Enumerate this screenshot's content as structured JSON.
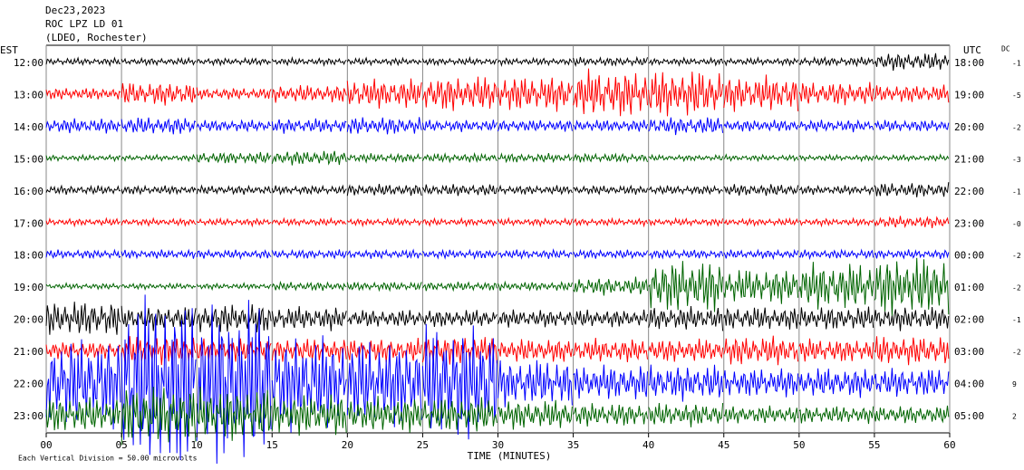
{
  "chart_data": {
    "type": "helicorder",
    "title": "Dec23,2023",
    "subtitle": "ROC LPZ LD 01",
    "station_note": "(LDEO, Rochester)",
    "left_axis_label": "EST",
    "right_axis_label": "UTC",
    "dc_label": "DC",
    "xlabel": "TIME (MINUTES)",
    "footnote": "Each Vertical Division =   50.00 microvolts",
    "xlim": [
      0,
      60
    ],
    "xticks": [
      {
        "value": 0,
        "label": "00"
      },
      {
        "value": 5,
        "label": "05"
      },
      10,
      15,
      20,
      25,
      30,
      35,
      40,
      45,
      50,
      55,
      60
    ],
    "rows": [
      {
        "est": "12:00",
        "utc": "18:00",
        "dc": "-1",
        "color": "#000000",
        "amplitude": [
          0.12,
          0.12,
          0.12,
          0.12,
          0.12,
          0.12,
          0.12,
          0.15,
          0.12,
          0.12,
          0.15,
          0.3
        ]
      },
      {
        "est": "13:00",
        "utc": "19:00",
        "dc": "-5",
        "color": "#ff0000",
        "amplitude": [
          0.2,
          0.4,
          0.2,
          0.3,
          0.5,
          0.6,
          0.6,
          0.8,
          0.8,
          0.6,
          0.4,
          0.3
        ]
      },
      {
        "est": "14:00",
        "utc": "20:00",
        "dc": "-2",
        "color": "#0000ff",
        "amplitude": [
          0.25,
          0.3,
          0.2,
          0.25,
          0.3,
          0.2,
          0.2,
          0.2,
          0.3,
          0.2,
          0.2,
          0.2
        ]
      },
      {
        "est": "15:00",
        "utc": "21:00",
        "dc": "-3",
        "color": "#006400",
        "amplitude": [
          0.1,
          0.1,
          0.2,
          0.25,
          0.15,
          0.15,
          0.15,
          0.15,
          0.1,
          0.1,
          0.1,
          0.1
        ]
      },
      {
        "est": "16:00",
        "utc": "22:00",
        "dc": "-1",
        "color": "#000000",
        "amplitude": [
          0.15,
          0.15,
          0.15,
          0.15,
          0.2,
          0.2,
          0.15,
          0.15,
          0.15,
          0.2,
          0.15,
          0.25
        ]
      },
      {
        "est": "17:00",
        "utc": "23:00",
        "dc": "-0",
        "color": "#ff0000",
        "amplitude": [
          0.12,
          0.12,
          0.12,
          0.12,
          0.12,
          0.12,
          0.12,
          0.12,
          0.12,
          0.12,
          0.12,
          0.2
        ]
      },
      {
        "est": "18:00",
        "utc": "00:00",
        "dc": "-2",
        "color": "#0000ff",
        "amplitude": [
          0.15,
          0.15,
          0.15,
          0.15,
          0.15,
          0.15,
          0.15,
          0.15,
          0.15,
          0.15,
          0.15,
          0.15
        ]
      },
      {
        "est": "19:00",
        "utc": "01:00",
        "dc": "-2",
        "color": "#006400",
        "amplitude": [
          0.1,
          0.1,
          0.1,
          0.15,
          0.15,
          0.15,
          0.15,
          0.3,
          0.9,
          0.6,
          0.8,
          1.0
        ]
      },
      {
        "est": "20:00",
        "utc": "02:00",
        "dc": "-1",
        "color": "#000000",
        "amplitude": [
          0.6,
          0.4,
          0.5,
          0.4,
          0.3,
          0.3,
          0.3,
          0.3,
          0.4,
          0.4,
          0.4,
          0.4
        ]
      },
      {
        "est": "21:00",
        "utc": "03:00",
        "dc": "-2",
        "color": "#ff0000",
        "amplitude": [
          0.3,
          0.5,
          0.4,
          0.4,
          0.4,
          0.5,
          0.4,
          0.4,
          0.4,
          0.5,
          0.4,
          0.5
        ]
      },
      {
        "est": "22:00",
        "utc": "04:00",
        "dc": "9",
        "color": "#0000ff",
        "amplitude": [
          1.5,
          3.0,
          2.8,
          1.6,
          1.5,
          2.0,
          0.8,
          0.6,
          0.6,
          0.5,
          0.5,
          0.5
        ]
      },
      {
        "est": "23:00",
        "utc": "05:00",
        "dc": "2",
        "color": "#006400",
        "amplitude": [
          0.6,
          1.0,
          0.9,
          0.7,
          0.6,
          0.6,
          0.5,
          0.4,
          0.4,
          0.3,
          0.3,
          0.3
        ]
      }
    ]
  }
}
